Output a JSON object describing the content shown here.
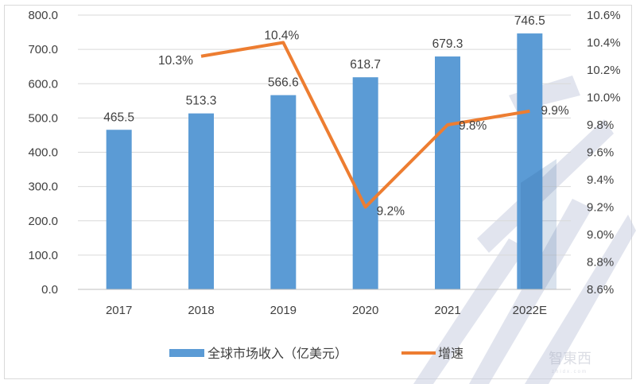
{
  "chart_data": {
    "type": "bar+line",
    "title": "",
    "categories": [
      "2017",
      "2018",
      "2019",
      "2020",
      "2021",
      "2022E"
    ],
    "series": [
      {
        "name": "全球市场收入（亿美元）",
        "type": "bar",
        "axis": "left",
        "color": "#5b9bd5",
        "values": [
          465.5,
          513.3,
          566.6,
          618.7,
          679.3,
          746.5
        ],
        "labels": [
          "465.5",
          "513.3",
          "566.6",
          "618.7",
          "679.3",
          "746.5"
        ]
      },
      {
        "name": "增速",
        "type": "line",
        "axis": "right",
        "color": "#ed7d31",
        "values": [
          null,
          10.3,
          10.4,
          9.2,
          9.8,
          9.9
        ],
        "labels": [
          "",
          "10.3%",
          "10.4%",
          "9.2%",
          "9.8%",
          "9.9%"
        ]
      }
    ],
    "y_left": {
      "min": 0,
      "max": 800,
      "step": 100,
      "ticks": [
        "0.0",
        "100.0",
        "200.0",
        "300.0",
        "400.0",
        "500.0",
        "600.0",
        "700.0",
        "800.0"
      ]
    },
    "y_right": {
      "min": 8.6,
      "max": 10.6,
      "step": 0.2,
      "ticks": [
        "8.6%",
        "8.8%",
        "9.0%",
        "9.2%",
        "9.4%",
        "9.6%",
        "9.8%",
        "10.0%",
        "10.2%",
        "10.4%",
        "10.6%"
      ]
    },
    "xlabel": "",
    "ylabel": "",
    "grid": true,
    "legend_position": "bottom",
    "watermark": "智东西 zhidx.com"
  },
  "legend": {
    "bar_label": "全球市场收入（亿美元）",
    "line_label": "增速"
  },
  "watermark": {
    "logo_text": "智東西",
    "url_text": "zhidx.com"
  }
}
